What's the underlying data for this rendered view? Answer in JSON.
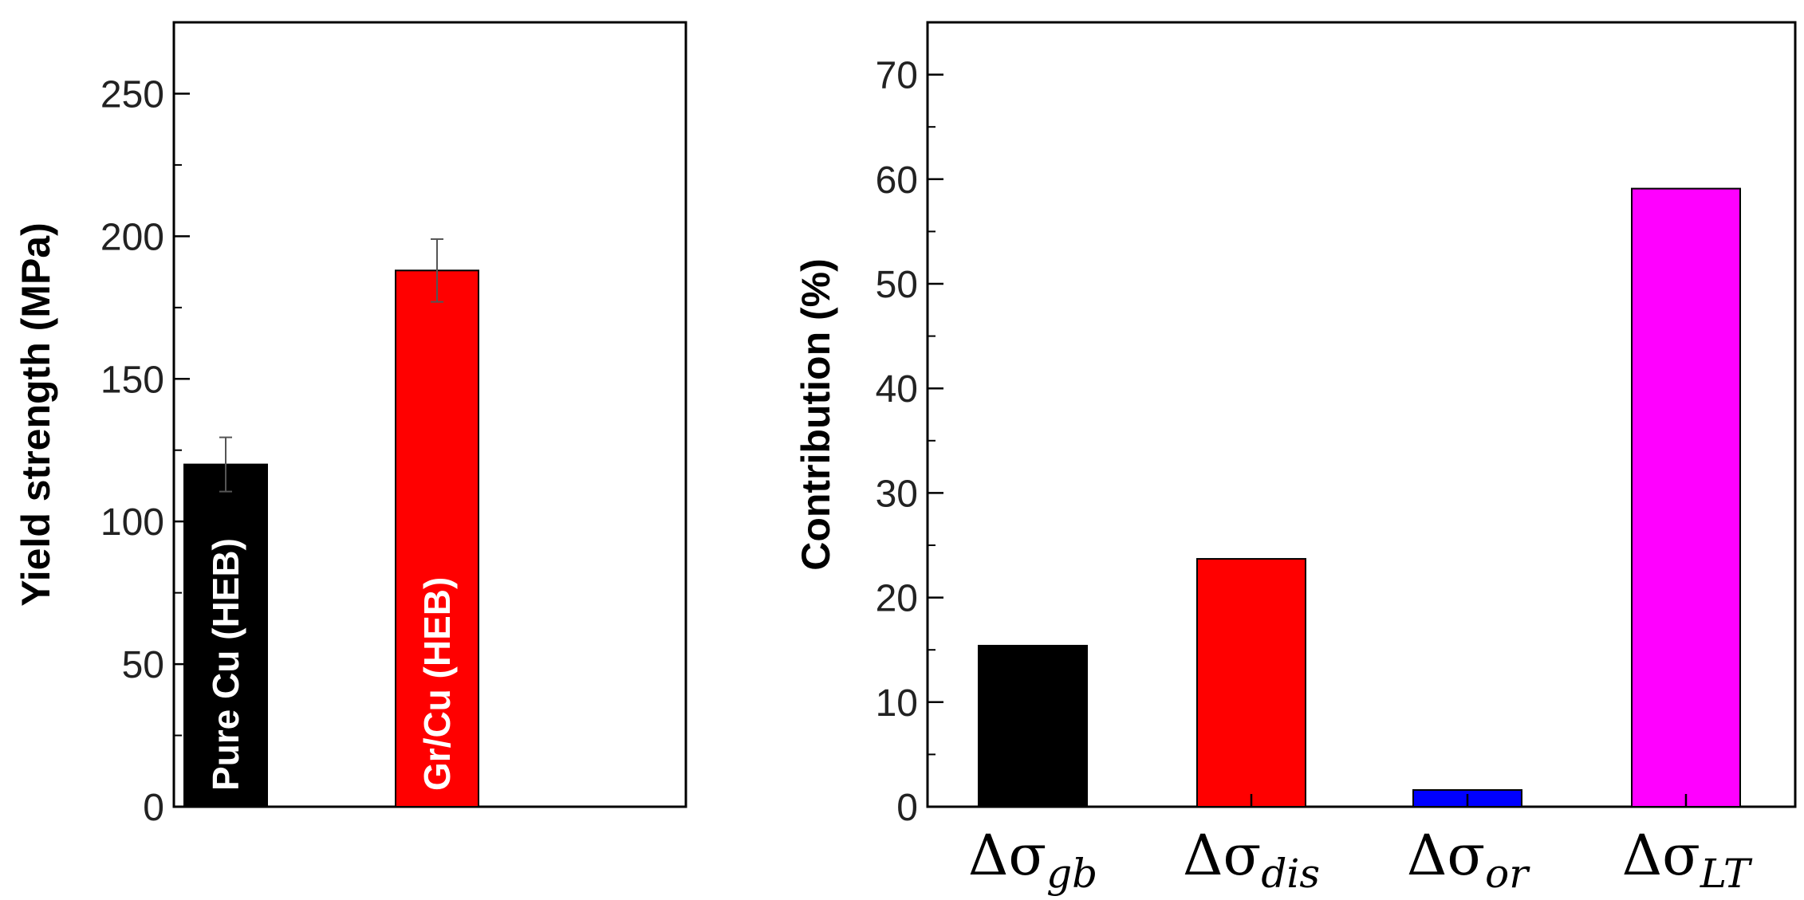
{
  "chart_data": [
    {
      "type": "bar",
      "ylabel": "Yield strength (MPa)",
      "ylim": [
        0,
        275
      ],
      "yticks": [
        0,
        50,
        100,
        150,
        200,
        250
      ],
      "categories": [
        "Pure Cu (HEB)",
        "Gr/Cu (HEB)"
      ],
      "values": [
        120,
        188
      ],
      "errors": [
        9.5,
        11
      ],
      "colors": [
        "#000000",
        "#ff0000"
      ]
    },
    {
      "type": "bar",
      "ylabel": "Contribution (%)",
      "ylim": [
        0,
        75
      ],
      "yticks": [
        0,
        10,
        20,
        30,
        40,
        50,
        60,
        70
      ],
      "categories": [
        {
          "main": "Δσ",
          "sub": "gb"
        },
        {
          "main": "Δσ",
          "sub": "dis"
        },
        {
          "main": "Δσ",
          "sub": "or"
        },
        {
          "main": "Δσ",
          "sub": "LT"
        }
      ],
      "values": [
        15.4,
        23.7,
        1.6,
        59.1
      ],
      "colors": [
        "#000000",
        "#ff0000",
        "#0000ff",
        "#ff00ff"
      ]
    }
  ]
}
